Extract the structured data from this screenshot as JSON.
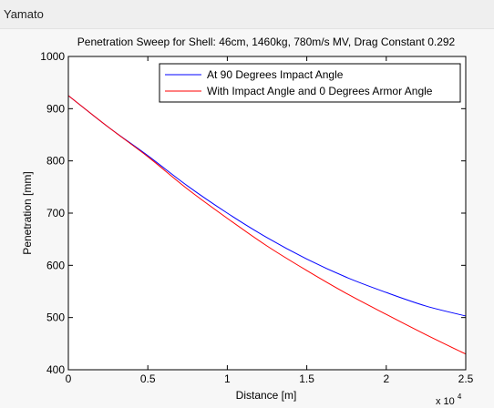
{
  "window": {
    "title": "Yamato"
  },
  "chart_data": {
    "type": "line",
    "title": "Penetration Sweep for Shell: 46cm, 1460kg, 780m/s MV, Drag Constant 0.292",
    "xlabel": "Distance [m]",
    "ylabel": "Penetration [mm]",
    "x_multiplier_label": "x 10",
    "x_multiplier_exponent": "4",
    "xlim": [
      0,
      2.5
    ],
    "ylim": [
      400,
      1000
    ],
    "xticks": [
      0,
      0.5,
      1,
      1.5,
      2,
      2.5
    ],
    "xtick_labels": [
      "0",
      "0.5",
      "1",
      "1.5",
      "2",
      "2.5"
    ],
    "yticks": [
      400,
      500,
      600,
      700,
      800,
      900,
      1000
    ],
    "ytick_labels": [
      "400",
      "500",
      "600",
      "700",
      "800",
      "900",
      "1000"
    ],
    "grid": false,
    "legend_position": "top-right",
    "series": [
      {
        "name": "At 90 Degrees Impact Angle",
        "color": "#0000ff",
        "x": [
          0,
          0.25,
          0.5,
          0.75,
          1.0,
          1.25,
          1.5,
          1.75,
          2.0,
          2.25,
          2.5
        ],
        "y": [
          925,
          865,
          810,
          752,
          700,
          653,
          612,
          577,
          548,
          522,
          503
        ]
      },
      {
        "name": "With Impact Angle and 0 Degrees Armor Angle",
        "color": "#ff0000",
        "x": [
          0,
          0.25,
          0.5,
          0.75,
          1.0,
          1.25,
          1.5,
          1.75,
          2.0,
          2.25,
          2.5
        ],
        "y": [
          925,
          865,
          808,
          746,
          690,
          637,
          590,
          546,
          506,
          467,
          430
        ]
      }
    ]
  }
}
